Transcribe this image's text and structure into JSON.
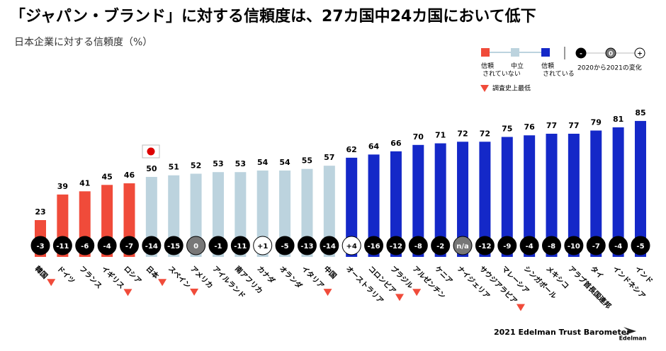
{
  "chart_data": {
    "type": "bar",
    "title": "「ジャパン・ブランド」に対する信頼度は、27カ国中24カ国において低下",
    "subtitle": "日本企業に対する信頼度（%）",
    "categories": [
      "韓国",
      "ドイツ",
      "フランス",
      "イギリス",
      "ロシア",
      "日本",
      "スペイン",
      "アメリカ",
      "アイルランド",
      "南アフリカ",
      "カナダ",
      "オランダ",
      "イタリア",
      "中国",
      "オーストラリア",
      "コロンビア",
      "ブラジル",
      "アルゼンチン",
      "ケニア",
      "ナイジェリア",
      "サウジアラビア",
      "マレーシア",
      "シンガポール",
      "メキシコ",
      "アラブ首長国連邦",
      "タイ",
      "インドネシア",
      "インド"
    ],
    "values": [
      23,
      39,
      41,
      45,
      46,
      50,
      51,
      52,
      53,
      53,
      54,
      54,
      55,
      57,
      62,
      64,
      66,
      70,
      71,
      72,
      72,
      75,
      76,
      77,
      77,
      79,
      81,
      85
    ],
    "groups": [
      0,
      0,
      0,
      0,
      0,
      1,
      1,
      1,
      1,
      1,
      1,
      1,
      1,
      1,
      2,
      2,
      2,
      2,
      2,
      2,
      2,
      2,
      2,
      2,
      2,
      2,
      2,
      2
    ],
    "color_groups": [
      {
        "label": "信頼\nされていない",
        "color": "#f04b3a"
      },
      {
        "label": "中立",
        "color": "#bcd3de"
      },
      {
        "label": "信頼\nされている",
        "color": "#1428c8"
      }
    ],
    "changes": [
      -3,
      -11,
      -6,
      -4,
      -7,
      -14,
      -15,
      0,
      -1,
      -11,
      1,
      -5,
      -13,
      -14,
      4,
      -16,
      -12,
      -8,
      -2,
      null,
      -12,
      -9,
      -4,
      -8,
      -10,
      -7,
      -4,
      -5
    ],
    "change_labels": [
      "-3",
      "-11",
      "-6",
      "-4",
      "-7",
      "-14",
      "-15",
      "0",
      "-1",
      "-11",
      "+1",
      "-5",
      "-13",
      "-14",
      "+4",
      "-16",
      "-12",
      "-8",
      "-2",
      "n/a",
      "-12",
      "-9",
      "-4",
      "-8",
      "-10",
      "-7",
      "-4",
      "-5"
    ],
    "record_low": [
      true,
      false,
      false,
      true,
      false,
      true,
      true,
      false,
      false,
      false,
      false,
      false,
      true,
      false,
      false,
      true,
      true,
      false,
      false,
      false,
      true,
      false,
      false,
      false,
      false,
      false,
      false,
      false
    ],
    "record_low_label": "調査史上最低",
    "change_legend": {
      "title": "2020から2021の変化",
      "symbols": [
        "-",
        "0",
        "+"
      ]
    },
    "ylim": [
      0,
      100
    ],
    "footer": "2021 Edelman Trust Barometer",
    "brand": "Edelman"
  }
}
